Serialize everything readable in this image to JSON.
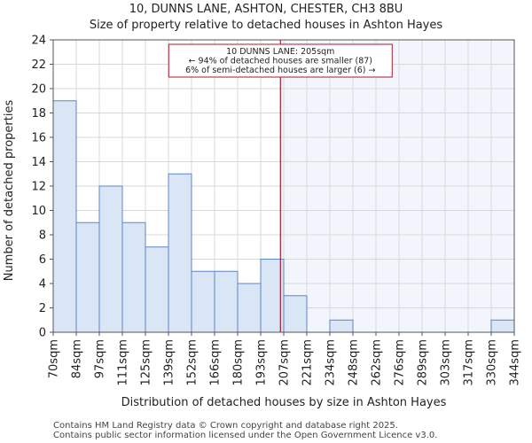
{
  "chart_data": {
    "type": "bar",
    "title_line1": "10, DUNNS LANE, ASHTON, CHESTER, CH3 8BU",
    "title_line2": "Size of property relative to detached houses in Ashton Hayes",
    "xlabel": "Distribution of detached houses by size in Ashton Hayes",
    "ylabel": "Number of detached properties",
    "bin_edges": [
      "70sqm",
      "84sqm",
      "97sqm",
      "111sqm",
      "125sqm",
      "139sqm",
      "152sqm",
      "166sqm",
      "180sqm",
      "193sqm",
      "207sqm",
      "221sqm",
      "234sqm",
      "248sqm",
      "262sqm",
      "276sqm",
      "289sqm",
      "303sqm",
      "317sqm",
      "330sqm",
      "344sqm"
    ],
    "values": [
      19,
      9,
      12,
      9,
      7,
      13,
      5,
      5,
      4,
      6,
      3,
      0,
      1,
      0,
      0,
      0,
      0,
      0,
      0,
      1
    ],
    "ylim": [
      0,
      24
    ],
    "yticks": [
      0,
      2,
      4,
      6,
      8,
      10,
      12,
      14,
      16,
      18,
      20,
      22,
      24
    ],
    "grid": true,
    "marker_value_sqm": 205,
    "annotation": {
      "line1": "10 DUNNS LANE: 205sqm",
      "line2": "← 94% of detached houses are smaller (87)",
      "line3": "6% of semi-detached houses are larger (6) →"
    },
    "colors": {
      "bar_fill": "#dae6f6",
      "bar_edge": "#5b86c8",
      "marker_line": "#a8192e",
      "highlight_region": "#f2f6fc"
    }
  },
  "footer": {
    "line1": "Contains HM Land Registry data © Crown copyright and database right 2025.",
    "line2": "Contains public sector information licensed under the Open Government Licence v3.0."
  }
}
